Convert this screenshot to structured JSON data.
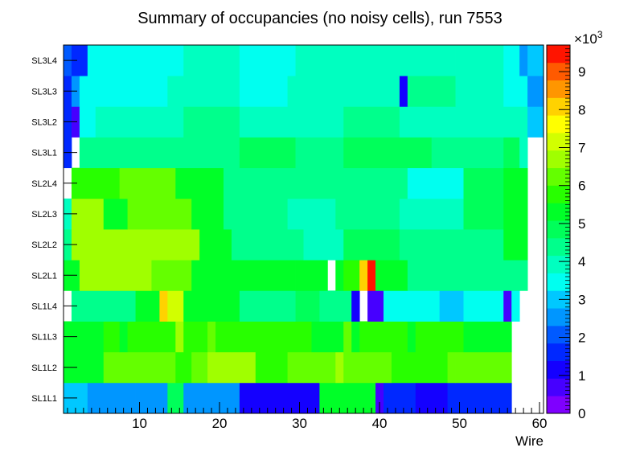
{
  "chart_data": {
    "type": "heatmap",
    "title": "Summary of occupancies (no noisy cells), run 7553",
    "xlabel": "Wire",
    "ylabel": "",
    "x_range": [
      0.5,
      60.5
    ],
    "x_ticks": [
      10,
      20,
      30,
      40,
      50,
      60
    ],
    "layers": [
      "SL1L1",
      "SL1L2",
      "SL1L3",
      "SL1L4",
      "SL2L1",
      "SL2L2",
      "SL2L3",
      "SL2L4",
      "SL3L1",
      "SL3L2",
      "SL3L3",
      "SL3L4"
    ],
    "colorbar": {
      "min": 0,
      "max": 9700,
      "ticks": [
        0,
        1,
        2,
        3,
        4,
        5,
        6,
        7,
        8,
        9
      ],
      "tick_labels": [
        "0",
        "1",
        "2",
        "3",
        "4",
        "5",
        "6",
        "7",
        "8",
        "9"
      ],
      "exponent_label": "×10",
      "exponent": "3",
      "palette": [
        "#7f00ff",
        "#4600ff",
        "#1400ff",
        "#0028ff",
        "#005aff",
        "#0096ff",
        "#00c8ff",
        "#00fff0",
        "#00ffc0",
        "#00ff8c",
        "#00ff5a",
        "#00ff28",
        "#28ff00",
        "#64ff00",
        "#a0ff00",
        "#d2ff00",
        "#ffff00",
        "#ffd200",
        "#ff9600",
        "#ff5a00",
        "#ff1400"
      ]
    },
    "runs": [
      [
        [
          1,
          3,
          3000
        ],
        [
          4,
          5,
          2700
        ],
        [
          6,
          7,
          2600
        ],
        [
          8,
          9,
          2500
        ],
        [
          10,
          11,
          2600
        ],
        [
          12,
          13,
          2400
        ],
        [
          14,
          15,
          4800
        ],
        [
          16,
          22,
          2400
        ],
        [
          23,
          32,
          1300
        ],
        [
          33,
          39,
          5400
        ],
        [
          40,
          40,
          500
        ],
        [
          41,
          44,
          1500
        ],
        [
          45,
          48,
          1100
        ],
        [
          49,
          56,
          1700
        ],
        [
          57,
          58,
          null
        ]
      ],
      [
        [
          1,
          5,
          5500
        ],
        [
          6,
          13,
          6100
        ],
        [
          14,
          14,
          6300
        ],
        [
          15,
          16,
          6000
        ],
        [
          17,
          18,
          6100
        ],
        [
          19,
          24,
          6500
        ],
        [
          25,
          28,
          6000
        ],
        [
          29,
          30,
          6400
        ],
        [
          31,
          34,
          6200
        ],
        [
          35,
          35,
          6600
        ],
        [
          36,
          41,
          6200
        ],
        [
          42,
          48,
          6000
        ],
        [
          49,
          49,
          6400
        ],
        [
          50,
          56,
          6100
        ],
        [
          57,
          58,
          null
        ]
      ],
      [
        [
          1,
          5,
          5300
        ],
        [
          6,
          7,
          6000
        ],
        [
          8,
          8,
          5500
        ],
        [
          9,
          14,
          5900
        ],
        [
          15,
          15,
          6600
        ],
        [
          16,
          18,
          5900
        ],
        [
          19,
          19,
          6300
        ],
        [
          20,
          21,
          5800
        ],
        [
          22,
          25,
          6000
        ],
        [
          26,
          31,
          5800
        ],
        [
          32,
          35,
          5500
        ],
        [
          36,
          36,
          6300
        ],
        [
          37,
          37,
          5500
        ],
        [
          38,
          43,
          5700
        ],
        [
          44,
          44,
          5300
        ],
        [
          45,
          50,
          5800
        ],
        [
          51,
          56,
          5500
        ],
        [
          57,
          58,
          null
        ]
      ],
      [
        [
          1,
          1,
          null
        ],
        [
          2,
          5,
          4600
        ],
        [
          6,
          9,
          4400
        ],
        [
          10,
          12,
          5100
        ],
        [
          13,
          13,
          8000
        ],
        [
          14,
          15,
          7000
        ],
        [
          16,
          22,
          5100
        ],
        [
          23,
          29,
          4500
        ],
        [
          30,
          32,
          4900
        ],
        [
          33,
          34,
          4200
        ],
        [
          35,
          36,
          4600
        ],
        [
          37,
          37,
          1000
        ],
        [
          38,
          38,
          null
        ],
        [
          39,
          40,
          500
        ],
        [
          41,
          44,
          3500
        ],
        [
          45,
          47,
          3300
        ],
        [
          48,
          50,
          3200
        ],
        [
          51,
          55,
          3300
        ],
        [
          56,
          56,
          700
        ],
        [
          57,
          57,
          3300
        ],
        [
          58,
          60,
          null
        ]
      ],
      [
        [
          1,
          2,
          5500
        ],
        [
          3,
          11,
          6900
        ],
        [
          12,
          16,
          6400
        ],
        [
          17,
          20,
          5200
        ],
        [
          21,
          29,
          5300
        ],
        [
          30,
          33,
          5200
        ],
        [
          34,
          34,
          null
        ],
        [
          35,
          35,
          5300
        ],
        [
          36,
          37,
          5800
        ],
        [
          38,
          38,
          8000
        ],
        [
          39,
          39,
          9500
        ],
        [
          40,
          43,
          5400
        ],
        [
          44,
          48,
          4600
        ],
        [
          49,
          55,
          4200
        ],
        [
          56,
          58,
          4400
        ],
        [
          59,
          60,
          null
        ]
      ],
      [
        [
          1,
          1,
          4400
        ],
        [
          2,
          10,
          6700
        ],
        [
          11,
          17,
          6500
        ],
        [
          18,
          21,
          5200
        ],
        [
          22,
          30,
          4400
        ],
        [
          31,
          34,
          4000
        ],
        [
          35,
          35,
          3700
        ],
        [
          36,
          42,
          4800
        ],
        [
          43,
          48,
          4200
        ],
        [
          49,
          55,
          4500
        ],
        [
          56,
          58,
          5400
        ],
        [
          59,
          60,
          null
        ]
      ],
      [
        [
          1,
          1,
          4000
        ],
        [
          2,
          5,
          6500
        ],
        [
          6,
          8,
          5300
        ],
        [
          9,
          16,
          6300
        ],
        [
          17,
          20,
          5300
        ],
        [
          21,
          28,
          4400
        ],
        [
          29,
          34,
          4000
        ],
        [
          35,
          42,
          4500
        ],
        [
          43,
          50,
          3800
        ],
        [
          51,
          55,
          4800
        ],
        [
          56,
          58,
          5200
        ],
        [
          59,
          60,
          null
        ]
      ],
      [
        [
          1,
          1,
          null
        ],
        [
          2,
          7,
          6000
        ],
        [
          8,
          14,
          6200
        ],
        [
          15,
          20,
          5300
        ],
        [
          21,
          28,
          4500
        ],
        [
          29,
          33,
          4400
        ],
        [
          34,
          43,
          4200
        ],
        [
          44,
          50,
          3600
        ],
        [
          51,
          55,
          4800
        ],
        [
          56,
          58,
          5200
        ],
        [
          59,
          60,
          null
        ]
      ],
      [
        [
          1,
          1,
          1800
        ],
        [
          2,
          2,
          null
        ],
        [
          3,
          10,
          4300
        ],
        [
          11,
          16,
          4200
        ],
        [
          17,
          22,
          4500
        ],
        [
          23,
          29,
          4700
        ],
        [
          30,
          35,
          4400
        ],
        [
          36,
          46,
          4700
        ],
        [
          47,
          55,
          4500
        ],
        [
          56,
          57,
          4800
        ],
        [
          58,
          58,
          3900
        ],
        [
          59,
          60,
          null
        ]
      ],
      [
        [
          1,
          1,
          1800
        ],
        [
          2,
          2,
          500
        ],
        [
          3,
          4,
          3500
        ],
        [
          5,
          15,
          4100
        ],
        [
          16,
          22,
          4200
        ],
        [
          23,
          31,
          3900
        ],
        [
          32,
          35,
          4000
        ],
        [
          36,
          42,
          4200
        ],
        [
          43,
          48,
          3800
        ],
        [
          49,
          55,
          3900
        ],
        [
          56,
          58,
          3700
        ],
        [
          59,
          60,
          2800
        ]
      ],
      [
        [
          1,
          1,
          1500
        ],
        [
          2,
          2,
          2700
        ],
        [
          3,
          13,
          3600
        ],
        [
          14,
          22,
          3800
        ],
        [
          23,
          28,
          3500
        ],
        [
          29,
          42,
          4100
        ],
        [
          43,
          43,
          1100
        ],
        [
          44,
          49,
          4300
        ],
        [
          50,
          55,
          4000
        ],
        [
          56,
          58,
          3600
        ],
        [
          59,
          60,
          2700
        ]
      ],
      [
        [
          1,
          1,
          2200
        ],
        [
          2,
          3,
          1700
        ],
        [
          4,
          10,
          3500
        ],
        [
          11,
          15,
          3300
        ],
        [
          16,
          22,
          3800
        ],
        [
          23,
          29,
          3500
        ],
        [
          30,
          43,
          4000
        ],
        [
          44,
          49,
          3800
        ],
        [
          50,
          55,
          4100
        ],
        [
          56,
          57,
          3400
        ],
        [
          58,
          58,
          2600
        ],
        [
          59,
          60,
          2800
        ]
      ]
    ]
  }
}
